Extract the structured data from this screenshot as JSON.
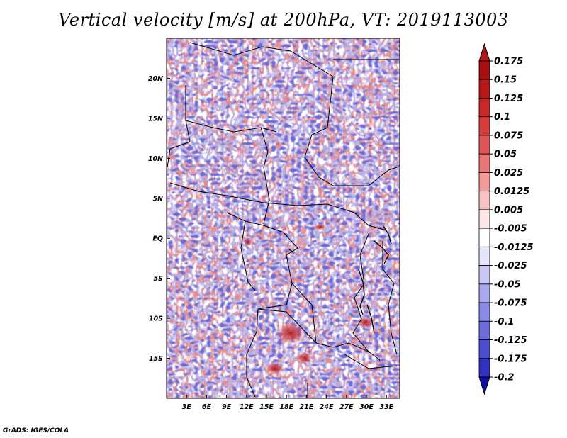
{
  "chart_data": {
    "type": "heatmap",
    "title": "Vertical velocity [m/s] at 200hPa, VT: 2019113003",
    "xlabel": "",
    "ylabel": "",
    "xlim": [
      0,
      35
    ],
    "ylim": [
      -20,
      25
    ],
    "x_ticks": [
      {
        "value": 3,
        "label": "3E"
      },
      {
        "value": 6,
        "label": "6E"
      },
      {
        "value": 9,
        "label": "9E"
      },
      {
        "value": 12,
        "label": "12E"
      },
      {
        "value": 15,
        "label": "15E"
      },
      {
        "value": 18,
        "label": "18E"
      },
      {
        "value": 21,
        "label": "21E"
      },
      {
        "value": 24,
        "label": "24E"
      },
      {
        "value": 27,
        "label": "27E"
      },
      {
        "value": 30,
        "label": "30E"
      },
      {
        "value": 33,
        "label": "33E"
      }
    ],
    "y_ticks": [
      {
        "value": 20,
        "label": "20N"
      },
      {
        "value": 15,
        "label": "15N"
      },
      {
        "value": 10,
        "label": "10N"
      },
      {
        "value": 5,
        "label": "5N"
      },
      {
        "value": 0,
        "label": "EQ"
      },
      {
        "value": -5,
        "label": "5S"
      },
      {
        "value": -10,
        "label": "10S"
      },
      {
        "value": -15,
        "label": "15S"
      }
    ],
    "colorbar": {
      "orientation": "vertical",
      "placement": "right",
      "levels": [
        {
          "label": "0.175",
          "value": 0.175,
          "color": "#a50f0f"
        },
        {
          "label": "0.15",
          "value": 0.15,
          "color": "#b81818"
        },
        {
          "label": "0.125",
          "value": 0.125,
          "color": "#c82828"
        },
        {
          "label": "0.1",
          "value": 0.1,
          "color": "#d63c3c"
        },
        {
          "label": "0.075",
          "value": 0.075,
          "color": "#e05656"
        },
        {
          "label": "0.05",
          "value": 0.05,
          "color": "#ea7676"
        },
        {
          "label": "0.025",
          "value": 0.025,
          "color": "#f29a9a"
        },
        {
          "label": "0.0125",
          "value": 0.0125,
          "color": "#f8c2c2"
        },
        {
          "label": "0.005",
          "value": 0.005,
          "color": "#fde6e6"
        },
        {
          "label": "-0.005",
          "value": -0.005,
          "color": "#ffffff"
        },
        {
          "label": "-0.0125",
          "value": -0.0125,
          "color": "#e6e6fb"
        },
        {
          "label": "-0.025",
          "value": -0.025,
          "color": "#c8c8f4"
        },
        {
          "label": "-0.05",
          "value": -0.05,
          "color": "#a8a8ee"
        },
        {
          "label": "-0.075",
          "value": -0.075,
          "color": "#8a8ae6"
        },
        {
          "label": "-0.1",
          "value": -0.1,
          "color": "#6c6cdc"
        },
        {
          "label": "-0.125",
          "value": -0.125,
          "color": "#4e4ed0"
        },
        {
          "label": "-0.175",
          "value": -0.175,
          "color": "#3232c0"
        },
        {
          "label": "-0.2",
          "value": -0.2,
          "color": "#1a1aa8"
        }
      ],
      "under_color": "#1010a0",
      "over_color": "#b01818"
    },
    "field_description": "Mostly weak vertical velocity between -0.05 and 0.05 m/s; strongest upward cores up to ~0.175 m/s over southern Congo/Angola-Zambia area around 12-16S, 17-21E and near 10S 30E."
  },
  "footer": {
    "credit": "GrADS: IGES/COLA"
  }
}
